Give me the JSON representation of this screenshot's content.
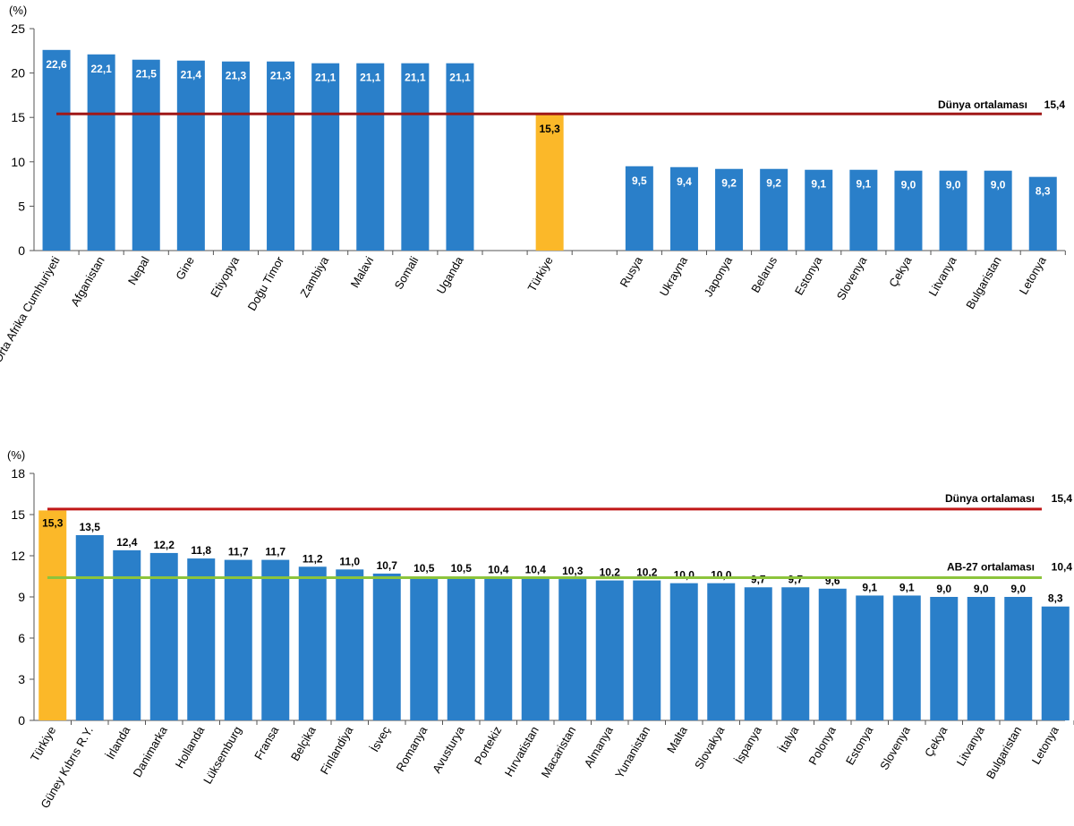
{
  "chart_data": [
    {
      "type": "bar",
      "unit_label": "(%)",
      "ylim": [
        0,
        25
      ],
      "yticks": [
        0,
        5,
        10,
        15,
        20,
        25
      ],
      "categories": [
        "Orta Afrika Cumhuriyeti",
        "Afganistan",
        "Nepal",
        "Gine",
        "Etiyopya",
        "Doğu Timor",
        "Zambiya",
        "Malavi",
        "Somali",
        "Uganda",
        "",
        "Türkiye",
        "",
        "Rusya",
        "Ukrayna",
        "Japonya",
        "Belarus",
        "Estonya",
        "Slovenya",
        "Çekya",
        "Litvanya",
        "Bulgaristan",
        "Letonya"
      ],
      "values": [
        22.6,
        22.1,
        21.5,
        21.4,
        21.3,
        21.3,
        21.1,
        21.1,
        21.1,
        21.1,
        null,
        15.3,
        null,
        9.5,
        9.4,
        9.2,
        9.2,
        9.1,
        9.1,
        9.0,
        9.0,
        9.0,
        8.3
      ],
      "value_labels": [
        "22,6",
        "22,1",
        "21,5",
        "21,4",
        "21,3",
        "21,3",
        "21,1",
        "21,1",
        "21,1",
        "21,1",
        "",
        "15,3",
        "",
        "9,5",
        "9,4",
        "9,2",
        "9,2",
        "9,1",
        "9,1",
        "9,0",
        "9,0",
        "9,0",
        "8,3"
      ],
      "highlight": "Türkiye",
      "colors": {
        "bar": "#2a7fc9",
        "highlight": "#fbb829"
      },
      "reference_lines": [
        {
          "label": "Dünya ortalaması",
          "value": 15.4,
          "value_label": "15,4",
          "color": "#a01818"
        }
      ]
    },
    {
      "type": "bar",
      "unit_label": "(%)",
      "ylim": [
        0,
        18
      ],
      "yticks": [
        0,
        3,
        6,
        9,
        12,
        15,
        18
      ],
      "categories": [
        "Türkiye",
        "Güney Kıbrıs R.Y.",
        "İrlanda",
        "Danimarka",
        "Hollanda",
        "Lüksemburg",
        "Fransa",
        "Belçika",
        "Finlandiya",
        "İsveç",
        "Romanya",
        "Avusturya",
        "Portekiz",
        "Hırvatistan",
        "Macaristan",
        "Almanya",
        "Yunanistan",
        "Malta",
        "Slovakya",
        "İspanya",
        "İtalya",
        "Polonya",
        "Estonya",
        "Slovenya",
        "Çekya",
        "Litvanya",
        "Bulgaristan",
        "Letonya"
      ],
      "values": [
        15.3,
        13.5,
        12.4,
        12.2,
        11.8,
        11.7,
        11.7,
        11.2,
        11.0,
        10.7,
        10.5,
        10.5,
        10.4,
        10.4,
        10.3,
        10.2,
        10.2,
        10.0,
        10.0,
        9.7,
        9.7,
        9.6,
        9.1,
        9.1,
        9.0,
        9.0,
        9.0,
        8.3
      ],
      "value_labels": [
        "15,3",
        "13,5",
        "12,4",
        "12,2",
        "11,8",
        "11,7",
        "11,7",
        "11,2",
        "11,0",
        "10,7",
        "10,5",
        "10,5",
        "10,4",
        "10,4",
        "10,3",
        "10,2",
        "10,2",
        "10,0",
        "10,0",
        "9,7",
        "9,7",
        "9,6",
        "9,1",
        "9,1",
        "9,0",
        "9,0",
        "9,0",
        "8,3"
      ],
      "highlight": "Türkiye",
      "colors": {
        "bar": "#2a7fc9",
        "highlight": "#fbb829"
      },
      "reference_lines": [
        {
          "label": "Dünya ortalaması",
          "value": 15.4,
          "value_label": "15,4",
          "color": "#c01818"
        },
        {
          "label": "AB-27 ortalaması",
          "value": 10.4,
          "value_label": "10,4",
          "color": "#8cc43c"
        }
      ]
    }
  ]
}
